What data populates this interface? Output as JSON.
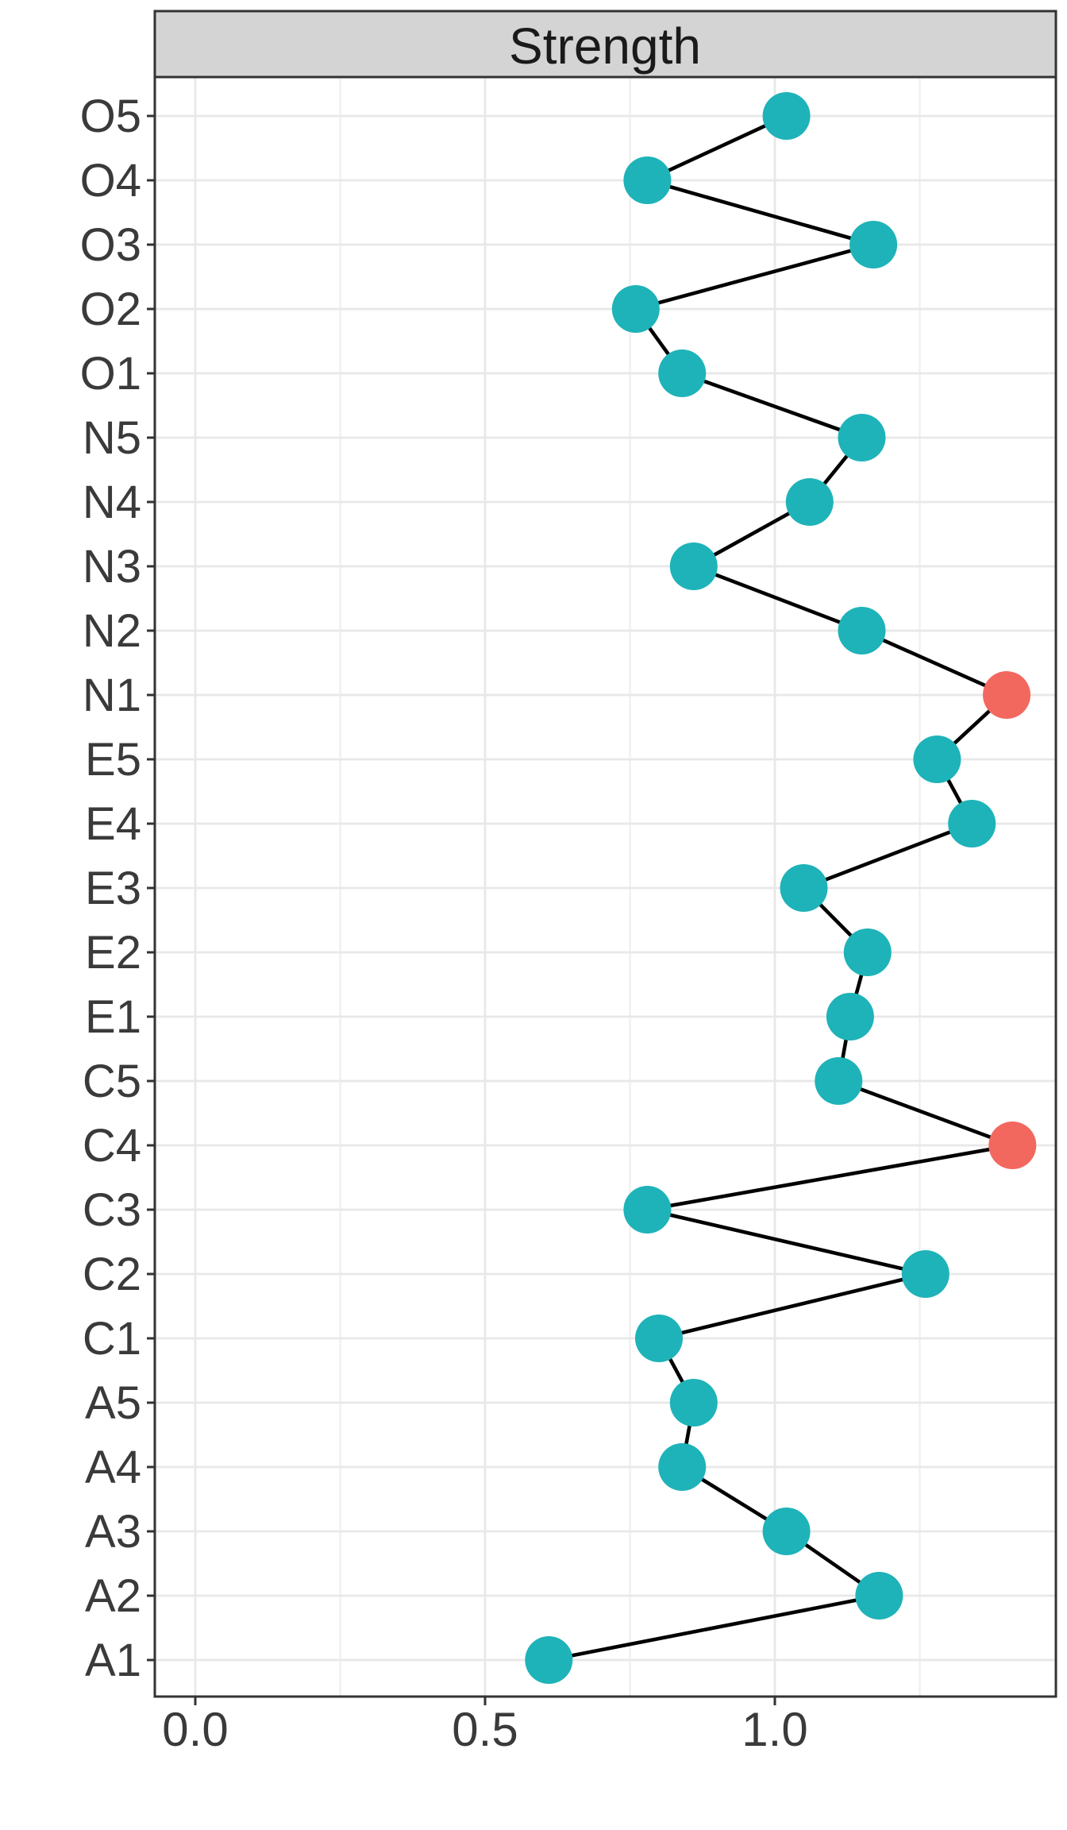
{
  "chart_data": {
    "type": "scatter",
    "subtype": "connected-dot-plot",
    "panel_strip_title": "Strength",
    "orientation": "horizontal-categories-on-y",
    "categories_top_to_bottom": [
      "O5",
      "O4",
      "O3",
      "O2",
      "O1",
      "N5",
      "N4",
      "N3",
      "N2",
      "N1",
      "E5",
      "E4",
      "E3",
      "E2",
      "E1",
      "C5",
      "C4",
      "C3",
      "C2",
      "C1",
      "A5",
      "A4",
      "A3",
      "A2",
      "A1"
    ],
    "points": [
      {
        "label": "O5",
        "value": 1.02,
        "highlighted": false
      },
      {
        "label": "O4",
        "value": 0.78,
        "highlighted": false
      },
      {
        "label": "O3",
        "value": 1.17,
        "highlighted": false
      },
      {
        "label": "O2",
        "value": 0.76,
        "highlighted": false
      },
      {
        "label": "O1",
        "value": 0.84,
        "highlighted": false
      },
      {
        "label": "N5",
        "value": 1.15,
        "highlighted": false
      },
      {
        "label": "N4",
        "value": 1.06,
        "highlighted": false
      },
      {
        "label": "N3",
        "value": 0.86,
        "highlighted": false
      },
      {
        "label": "N2",
        "value": 1.15,
        "highlighted": false
      },
      {
        "label": "N1",
        "value": 1.4,
        "highlighted": true
      },
      {
        "label": "E5",
        "value": 1.28,
        "highlighted": false
      },
      {
        "label": "E4",
        "value": 1.34,
        "highlighted": false
      },
      {
        "label": "E3",
        "value": 1.05,
        "highlighted": false
      },
      {
        "label": "E2",
        "value": 1.16,
        "highlighted": false
      },
      {
        "label": "E1",
        "value": 1.13,
        "highlighted": false
      },
      {
        "label": "C5",
        "value": 1.11,
        "highlighted": false
      },
      {
        "label": "C4",
        "value": 1.41,
        "highlighted": true
      },
      {
        "label": "C3",
        "value": 0.78,
        "highlighted": false
      },
      {
        "label": "C2",
        "value": 1.26,
        "highlighted": false
      },
      {
        "label": "C1",
        "value": 0.8,
        "highlighted": false
      },
      {
        "label": "A5",
        "value": 0.86,
        "highlighted": false
      },
      {
        "label": "A4",
        "value": 0.84,
        "highlighted": false
      },
      {
        "label": "A3",
        "value": 1.02,
        "highlighted": false
      },
      {
        "label": "A2",
        "value": 1.18,
        "highlighted": false
      },
      {
        "label": "A1",
        "value": 0.61,
        "highlighted": false
      }
    ],
    "x_axis": {
      "tick_labels": [
        "0.0",
        "0.5",
        "1.0"
      ],
      "tick_values": [
        0.0,
        0.5,
        1.0
      ],
      "minor_grid_values": [
        0.25,
        0.75,
        1.25
      ],
      "xlim": [
        -0.07,
        1.485
      ]
    },
    "grid": "on",
    "legend": "none",
    "colors": {
      "point_default": "#1EB3B8",
      "point_highlight": "#F2685F",
      "connector_line": "#000000",
      "strip_background": "#D4D4D4",
      "panel_border": "#333333",
      "grid_major": "#E8E8E8",
      "grid_minor": "#F0F0F0",
      "tick_mark": "#333333",
      "axis_label_text": "#3A3A3A",
      "strip_text": "#1A1A1A",
      "panel_background": "#FFFFFF"
    }
  }
}
